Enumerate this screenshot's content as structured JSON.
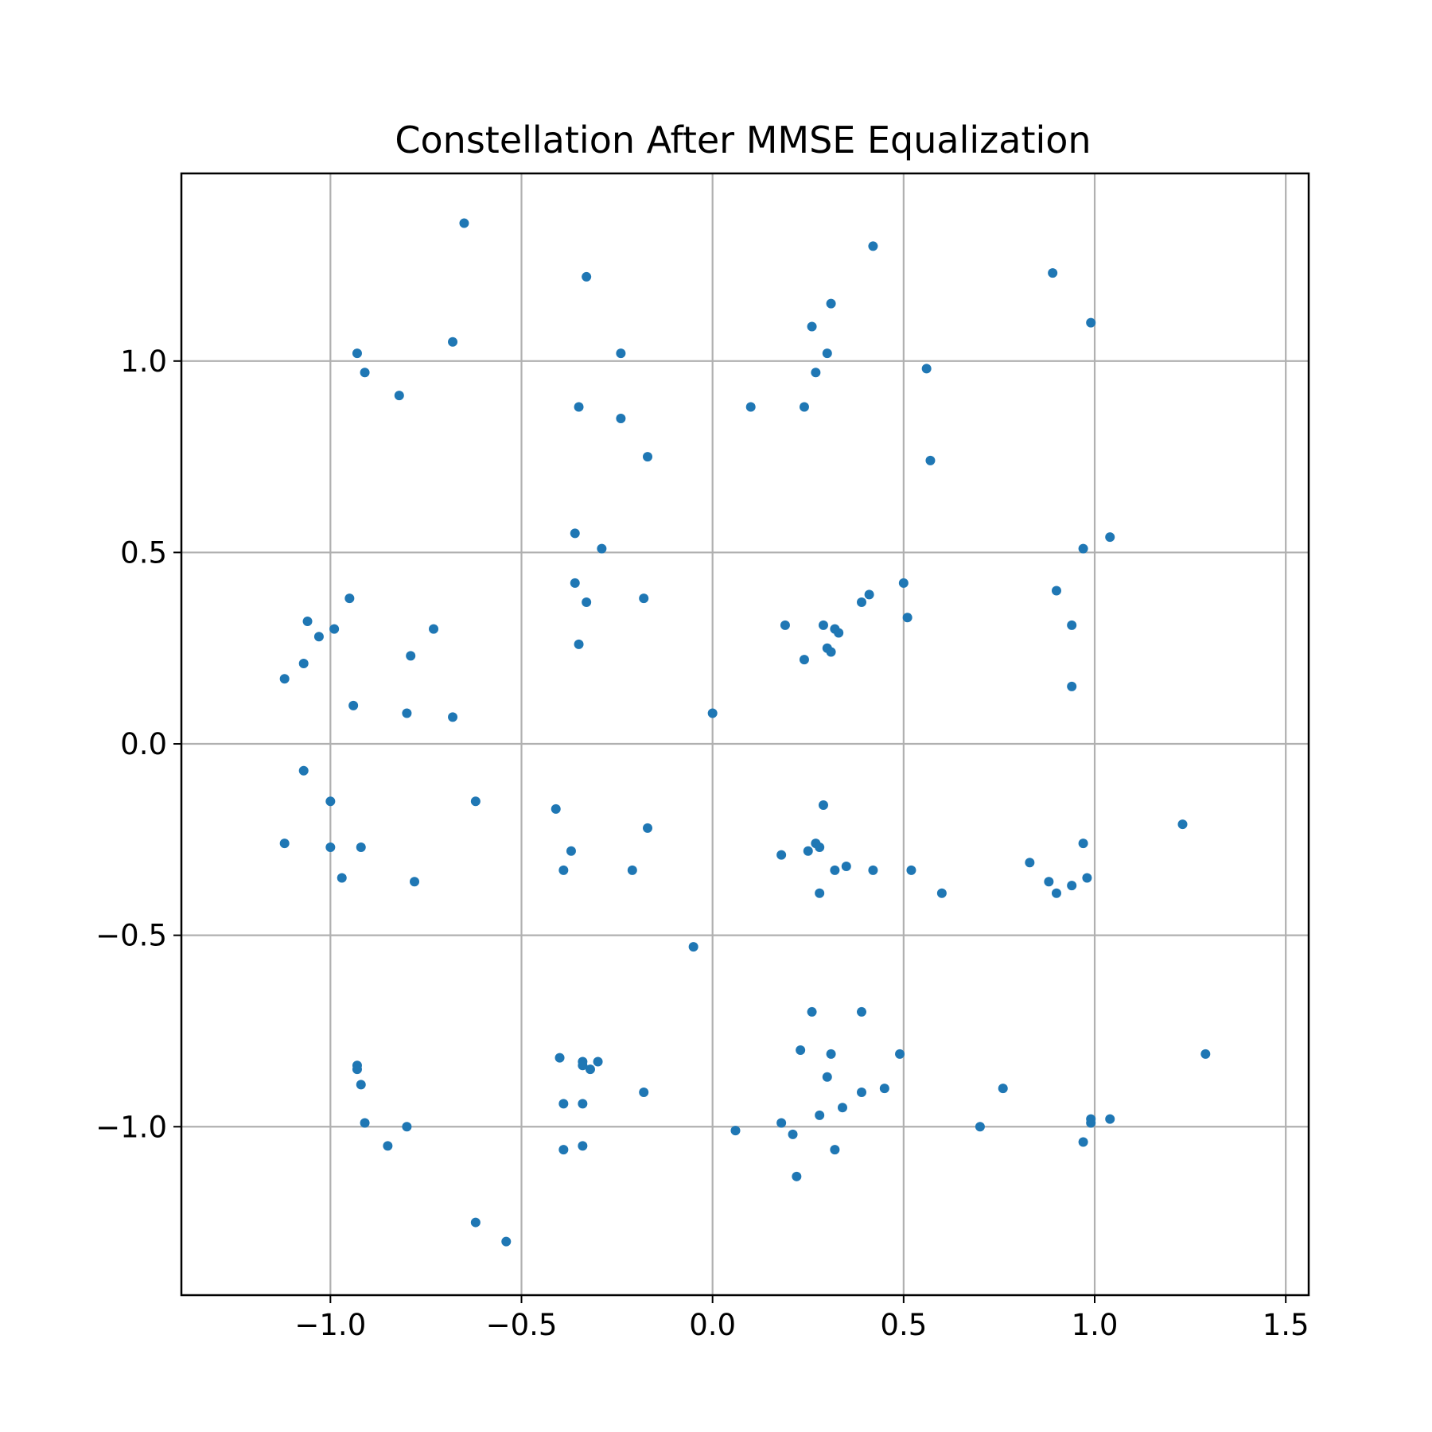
{
  "chart_data": {
    "type": "scatter",
    "title": "Constellation After MMSE Equalization",
    "xlabel": "",
    "ylabel": "",
    "xlim": [
      -1.39,
      1.56
    ],
    "ylim": [
      -1.44,
      1.49
    ],
    "xticks": [
      -1.0,
      -0.5,
      0.0,
      0.5,
      1.0,
      1.5
    ],
    "xtick_labels": [
      "−1.0",
      "−0.5",
      "0.0",
      "0.5",
      "1.0",
      "1.5"
    ],
    "yticks": [
      -1.0,
      -0.5,
      0.0,
      0.5,
      1.0
    ],
    "ytick_labels": [
      "−1.0",
      "−0.5",
      "0.0",
      "0.5",
      "1.0"
    ],
    "grid": true,
    "marker_color": "#1f77b4",
    "points": [
      [
        -0.65,
        1.36
      ],
      [
        -0.33,
        1.22
      ],
      [
        0.42,
        1.3
      ],
      [
        0.89,
        1.23
      ],
      [
        0.99,
        1.1
      ],
      [
        -0.68,
        1.05
      ],
      [
        -0.93,
        1.02
      ],
      [
        -0.91,
        0.97
      ],
      [
        -0.82,
        0.91
      ],
      [
        -0.24,
        1.02
      ],
      [
        -0.35,
        0.88
      ],
      [
        -0.24,
        0.85
      ],
      [
        -0.17,
        0.75
      ],
      [
        0.1,
        0.88
      ],
      [
        0.24,
        0.88
      ],
      [
        0.26,
        1.09
      ],
      [
        0.31,
        1.15
      ],
      [
        0.3,
        1.02
      ],
      [
        0.27,
        0.97
      ],
      [
        0.56,
        0.98
      ],
      [
        0.57,
        0.74
      ],
      [
        -0.36,
        0.55
      ],
      [
        -0.29,
        0.51
      ],
      [
        -0.36,
        0.42
      ],
      [
        -0.33,
        0.37
      ],
      [
        -0.18,
        0.38
      ],
      [
        -0.35,
        0.26
      ],
      [
        1.04,
        0.54
      ],
      [
        0.97,
        0.51
      ],
      [
        0.9,
        0.4
      ],
      [
        0.94,
        0.31
      ],
      [
        0.94,
        0.15
      ],
      [
        0.5,
        0.42
      ],
      [
        0.51,
        0.33
      ],
      [
        0.41,
        0.39
      ],
      [
        0.39,
        0.37
      ],
      [
        0.19,
        0.31
      ],
      [
        0.29,
        0.31
      ],
      [
        0.32,
        0.3
      ],
      [
        0.33,
        0.29
      ],
      [
        0.24,
        0.22
      ],
      [
        0.3,
        0.25
      ],
      [
        0.31,
        0.24
      ],
      [
        0.0,
        0.08
      ],
      [
        -1.12,
        0.17
      ],
      [
        -1.07,
        0.21
      ],
      [
        -1.06,
        0.32
      ],
      [
        -1.03,
        0.28
      ],
      [
        -0.99,
        0.3
      ],
      [
        -0.95,
        0.38
      ],
      [
        -0.94,
        0.1
      ],
      [
        -0.79,
        0.23
      ],
      [
        -0.73,
        0.3
      ],
      [
        -0.8,
        0.08
      ],
      [
        -0.68,
        0.07
      ],
      [
        -1.07,
        -0.07
      ],
      [
        -1.0,
        -0.15
      ],
      [
        -1.12,
        -0.26
      ],
      [
        -1.0,
        -0.27
      ],
      [
        -0.92,
        -0.27
      ],
      [
        -0.97,
        -0.35
      ],
      [
        -0.78,
        -0.36
      ],
      [
        -0.62,
        -0.15
      ],
      [
        -0.41,
        -0.17
      ],
      [
        -0.37,
        -0.28
      ],
      [
        -0.39,
        -0.33
      ],
      [
        -0.17,
        -0.22
      ],
      [
        -0.21,
        -0.33
      ],
      [
        0.29,
        -0.16
      ],
      [
        0.27,
        -0.26
      ],
      [
        0.18,
        -0.29
      ],
      [
        0.25,
        -0.28
      ],
      [
        0.28,
        -0.27
      ],
      [
        0.35,
        -0.32
      ],
      [
        0.32,
        -0.33
      ],
      [
        0.42,
        -0.33
      ],
      [
        0.52,
        -0.33
      ],
      [
        0.28,
        -0.39
      ],
      [
        0.6,
        -0.39
      ],
      [
        1.23,
        -0.21
      ],
      [
        0.97,
        -0.26
      ],
      [
        0.83,
        -0.31
      ],
      [
        0.88,
        -0.36
      ],
      [
        0.9,
        -0.39
      ],
      [
        0.94,
        -0.37
      ],
      [
        0.98,
        -0.35
      ],
      [
        -0.05,
        -0.53
      ],
      [
        -0.93,
        -0.84
      ],
      [
        -0.93,
        -0.85
      ],
      [
        -0.92,
        -0.89
      ],
      [
        -0.91,
        -0.99
      ],
      [
        -0.8,
        -1.0
      ],
      [
        -0.85,
        -1.05
      ],
      [
        -0.62,
        -1.25
      ],
      [
        -0.54,
        -1.3
      ],
      [
        -0.4,
        -0.82
      ],
      [
        -0.34,
        -0.83
      ],
      [
        -0.34,
        -0.84
      ],
      [
        -0.32,
        -0.85
      ],
      [
        -0.3,
        -0.83
      ],
      [
        -0.39,
        -0.94
      ],
      [
        -0.34,
        -0.94
      ],
      [
        -0.18,
        -0.91
      ],
      [
        -0.39,
        -1.06
      ],
      [
        -0.34,
        -1.05
      ],
      [
        0.26,
        -0.7
      ],
      [
        0.39,
        -0.7
      ],
      [
        0.23,
        -0.8
      ],
      [
        0.31,
        -0.81
      ],
      [
        0.49,
        -0.81
      ],
      [
        0.3,
        -0.87
      ],
      [
        0.39,
        -0.91
      ],
      [
        0.45,
        -0.9
      ],
      [
        0.34,
        -0.95
      ],
      [
        0.28,
        -0.97
      ],
      [
        0.18,
        -0.99
      ],
      [
        0.06,
        -1.01
      ],
      [
        0.21,
        -1.02
      ],
      [
        0.32,
        -1.06
      ],
      [
        0.22,
        -1.13
      ],
      [
        0.76,
        -0.9
      ],
      [
        0.7,
        -1.0
      ],
      [
        0.99,
        -0.98
      ],
      [
        0.99,
        -0.99
      ],
      [
        1.04,
        -0.98
      ],
      [
        0.97,
        -1.04
      ],
      [
        1.29,
        -0.81
      ]
    ]
  }
}
